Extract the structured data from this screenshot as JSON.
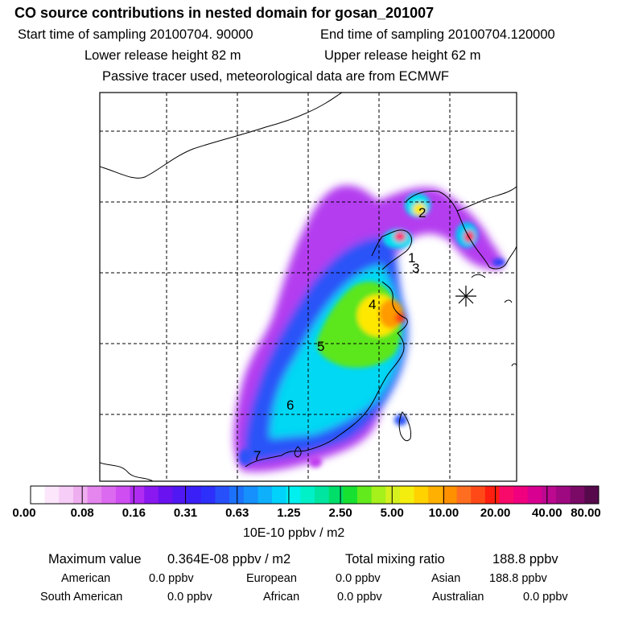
{
  "header": {
    "title": "CO  source contributions in nested domain for gosan_201007",
    "start_label": "Start time of sampling 20100704. 90000",
    "end_label": "End time of sampling 20100704.120000",
    "lower_release": "Lower release height   82 m",
    "upper_release": "Upper release height   62 m",
    "note": "Passive tracer used, meteorological data are from ECMWF"
  },
  "map": {
    "region_labels": [
      "1",
      "2",
      "3",
      "4",
      "5",
      "6",
      "7"
    ],
    "receptor_marker": "star-marker"
  },
  "colorbar": {
    "tick_labels": [
      "0.00",
      "0.08",
      "0.16",
      "0.31",
      "0.63",
      "1.25",
      "2.50",
      "5.00",
      "10.00",
      "20.00",
      "40.00",
      "80.00"
    ],
    "colors": [
      "#ffffff",
      "#fbe6fb",
      "#f6cdf6",
      "#efaef0",
      "#e585ee",
      "#dc6af0",
      "#cf4ef2",
      "#b02cf2",
      "#8a18f0",
      "#6a12ef",
      "#5018f3",
      "#3a1ff7",
      "#2c30fa",
      "#2850fa",
      "#1c72fb",
      "#1690fc",
      "#0eb0fc",
      "#00d2fc",
      "#00f0f0",
      "#00f0c8",
      "#00e6a0",
      "#00de6a",
      "#18e030",
      "#62ea1c",
      "#a6f01c",
      "#d6f01e",
      "#f4ee0e",
      "#ffd200",
      "#ffb000",
      "#ff9000",
      "#ff6e20",
      "#ff4a18",
      "#ff1e10",
      "#f80a6a",
      "#f0007e",
      "#d80090",
      "#bd0890",
      "#9e0880",
      "#7a0a66",
      "#560a4c"
    ],
    "units": "10E-10 ppbv / m2"
  },
  "stats": {
    "max_label": "Maximum value",
    "max_value": "0.364E-08 ppbv / m2",
    "total_label": "Total mixing ratio",
    "total_value": "188.8 ppbv",
    "sources": [
      {
        "name": "American",
        "value": "0.0 ppbv"
      },
      {
        "name": "European",
        "value": "0.0 ppbv"
      },
      {
        "name": "Asian",
        "value": "188.8 ppbv"
      },
      {
        "name": "South American",
        "value": "0.0 ppbv"
      },
      {
        "name": "African",
        "value": "0.0 ppbv"
      },
      {
        "name": "Australian",
        "value": "0.0 ppbv"
      }
    ]
  }
}
